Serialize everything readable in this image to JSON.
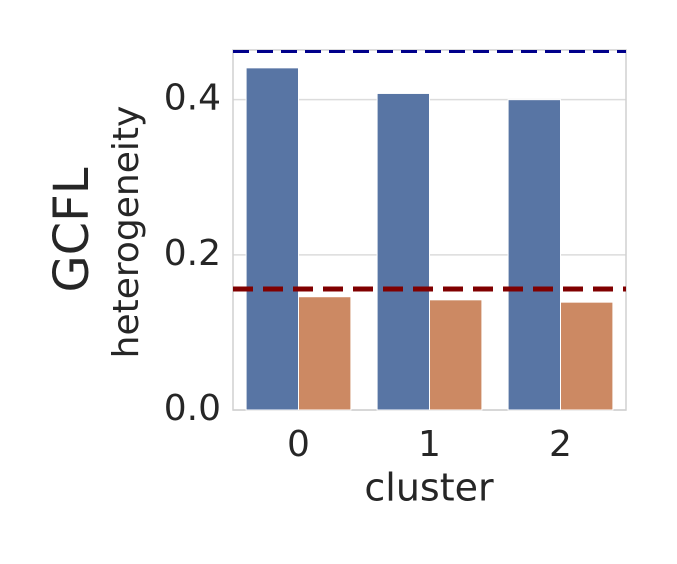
{
  "chart_data": {
    "type": "bar",
    "title": "GCFL",
    "ylabel": "heterogeneity",
    "xlabel": "cluster",
    "categories": [
      "0",
      "1",
      "2"
    ],
    "series": [
      {
        "color": "#5875a4",
        "values": [
          0.441,
          0.408,
          0.4
        ]
      },
      {
        "color": "#cc8963",
        "values": [
          0.146,
          0.142,
          0.139
        ]
      }
    ],
    "hlines": [
      {
        "value": 0.462,
        "color": "#00008b"
      },
      {
        "value": 0.156,
        "color": "#800000"
      }
    ],
    "ylim": [
      0,
      0.464
    ],
    "yticks": [
      {
        "value": 0,
        "label": "0.0"
      },
      {
        "value": 0.2,
        "label": "0.2"
      },
      {
        "value": 0.4,
        "label": "0.4"
      }
    ],
    "grid": true
  }
}
